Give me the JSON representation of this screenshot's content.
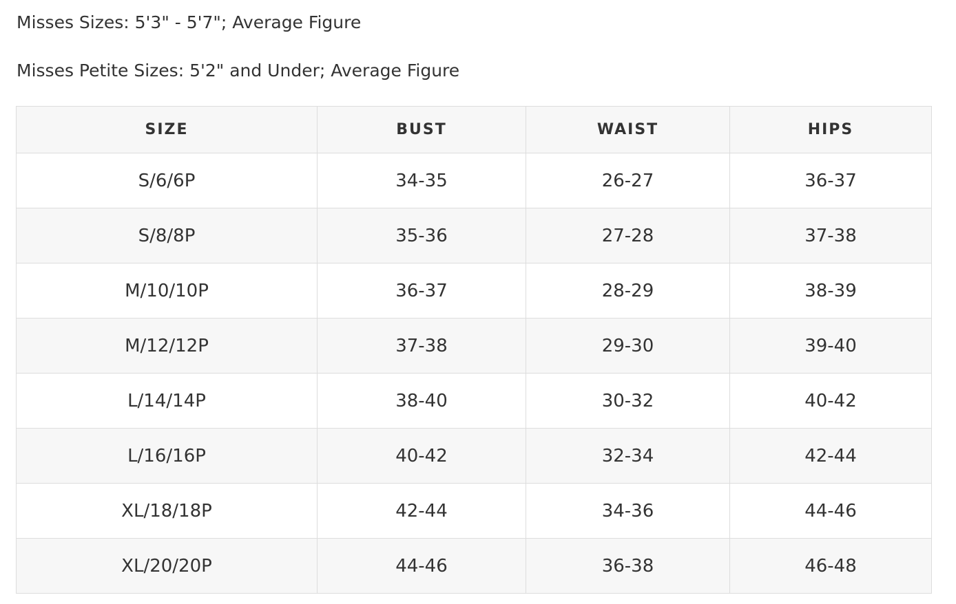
{
  "notes": [
    "Misses Sizes: 5'3\" - 5'7\"; Average Figure",
    "Misses Petite Sizes: 5'2\" and Under; Average Figure"
  ],
  "table": {
    "header": [
      "SIZE",
      "BUST",
      "WAIST",
      "HIPS"
    ],
    "rows": [
      [
        "S/6/6P",
        "34-35",
        "26-27",
        "36-37"
      ],
      [
        "S/8/8P",
        "35-36",
        "27-28",
        "37-38"
      ],
      [
        "M/10/10P",
        "36-37",
        "28-29",
        "38-39"
      ],
      [
        "M/12/12P",
        "37-38",
        "29-30",
        "39-40"
      ],
      [
        "L/14/14P",
        "38-40",
        "30-32",
        "40-42"
      ],
      [
        "L/16/16P",
        "40-42",
        "32-34",
        "42-44"
      ],
      [
        "XL/18/18P",
        "42-44",
        "34-36",
        "44-46"
      ],
      [
        "XL/20/20P",
        "44-46",
        "36-38",
        "46-48"
      ]
    ]
  }
}
